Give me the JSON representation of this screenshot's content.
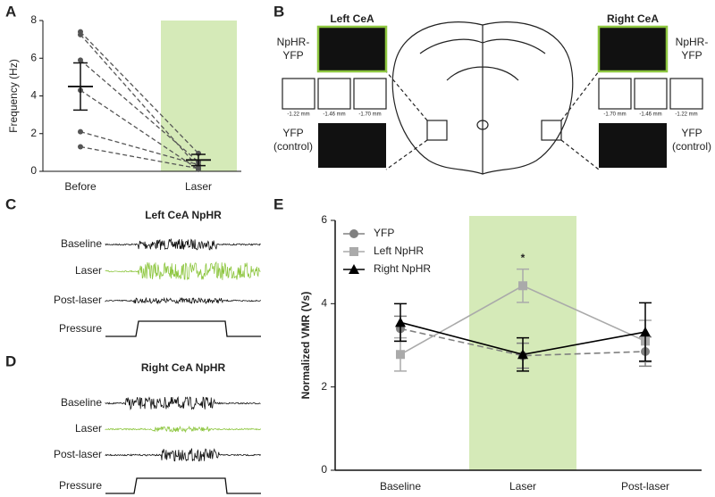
{
  "panel_letters": [
    "A",
    "B",
    "C",
    "D",
    "E"
  ],
  "chart_data": [
    {
      "type": "paired-dot",
      "ylabel": "Frequency (Hz)",
      "categories": [
        "Before",
        "Laser"
      ],
      "before": [
        7.4,
        7.25,
        5.9,
        4.3,
        2.1,
        1.3
      ],
      "laser": [
        0.95,
        0.2,
        0.5,
        0.1,
        0.35,
        0.15
      ],
      "mean": [
        4.5,
        0.6
      ],
      "sem": [
        1.25,
        0.3
      ],
      "ylim": [
        0,
        8
      ],
      "yticks": [
        0,
        2,
        4,
        6,
        8
      ],
      "color": "#555555",
      "shade_color": "#d5eab8",
      "laser_color": "#8dc63f"
    },
    {
      "type": "line",
      "ylabel": "Normalized VMR (Vs)",
      "categories": [
        "Baseline",
        "Laser",
        "Post-laser"
      ],
      "ylim": [
        0,
        6
      ],
      "yticks": [
        0,
        2,
        4,
        6
      ],
      "annotation": "*",
      "shade_color": "#d5eab8",
      "laser_color": "#8dc63f",
      "series": [
        {
          "name": "YFP",
          "color": "#808080",
          "marker": "circle",
          "dashed": true,
          "values": [
            3.4,
            2.75,
            2.85
          ],
          "errors": [
            0.3,
            0.3,
            0.35
          ]
        },
        {
          "name": "Left NpHR",
          "color": "#aaaaaa",
          "marker": "square",
          "dashed": false,
          "values": [
            2.78,
            4.43,
            3.1
          ],
          "errors": [
            0.4,
            0.4,
            0.5
          ]
        },
        {
          "name": "Right NpHR",
          "color": "#000000",
          "marker": "triangle",
          "dashed": false,
          "values": [
            3.55,
            2.78,
            3.32
          ],
          "errors": [
            0.45,
            0.4,
            0.7
          ]
        }
      ]
    }
  ],
  "panel_b": {
    "left_title": "Left CeA",
    "right_title": "Right CeA",
    "nphr_label": [
      "NpHR-",
      "YFP"
    ],
    "control_label": [
      "YFP",
      "(control)"
    ],
    "left_mm": [
      "-1.22 mm",
      "-1.46 mm",
      "-1.70 mm"
    ],
    "right_mm": [
      "-1.70 mm",
      "-1.46 mm",
      "-1.22 mm"
    ]
  },
  "panel_c": {
    "title": "Left CeA NpHR",
    "rows": [
      "Baseline",
      "Laser",
      "Post-laser",
      "Pressure"
    ]
  },
  "panel_d": {
    "title": "Right CeA NpHR",
    "rows": [
      "Baseline",
      "Laser",
      "Post-laser",
      "Pressure"
    ]
  }
}
